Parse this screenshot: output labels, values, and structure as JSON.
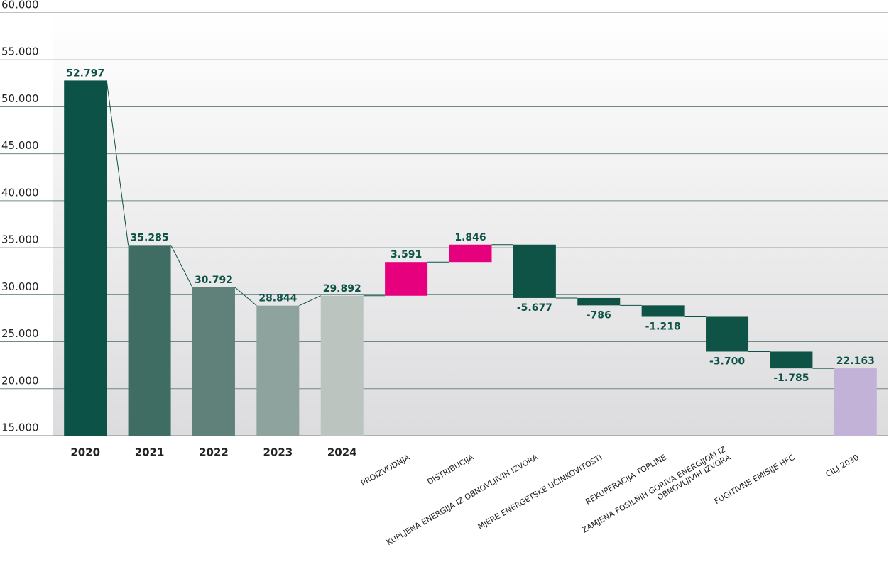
{
  "chart_data": {
    "type": "waterfall",
    "categories": [
      "2020",
      "2021",
      "2022",
      "2023",
      "2024",
      "PROIZVODNJA",
      "DISTRIBUCIJA",
      "KUPLJENA ENERGIJA IZ OBNOVLJIVIH IZVORA",
      "MJERE ENERGETSKE UČINKOVITOSTI",
      "REKUPERACIJA TOPLINE",
      "ZAMJENA FOSILNIH GORIVA ENERGIJOM IZ\nOBNOVLJIVIH IZVORA",
      "FUGITIVNE EMISIJE HFC",
      "CILJ 2030"
    ],
    "values": [
      52797,
      35285,
      30792,
      28844,
      29892,
      3591,
      1846,
      -5677,
      -786,
      -1218,
      -3700,
      -1785,
      22163
    ],
    "value_labels": [
      "52.797",
      "35.285",
      "30.792",
      "28.844",
      "29.892",
      "3.591",
      "1.846",
      "-5.677",
      "-786",
      "-1.218",
      "-3.700",
      "-1.785",
      "22.163"
    ],
    "measure": [
      "absolute",
      "absolute",
      "absolute",
      "absolute",
      "absolute",
      "relative",
      "relative",
      "relative",
      "relative",
      "relative",
      "relative",
      "relative",
      "absolute"
    ],
    "colors": [
      "#0d5247",
      "#3f6c63",
      "#5f8179",
      "#8fa39e",
      "#bcc4c0",
      "#e6007e",
      "#e6007e",
      "#0f5246",
      "#0f5246",
      "#0f5246",
      "#0f5246",
      "#0f5246",
      "#c3b2d8"
    ],
    "ylim": [
      15000,
      60000
    ],
    "yticks": [
      {
        "value": 15000,
        "label": "15.000"
      },
      {
        "value": 20000,
        "label": "20.000"
      },
      {
        "value": 25000,
        "label": "25.000"
      },
      {
        "value": 30000,
        "label": "30.000"
      },
      {
        "value": 35000,
        "label": "35.000"
      },
      {
        "value": 40000,
        "label": "40.000"
      },
      {
        "value": 45000,
        "label": "45.000"
      },
      {
        "value": 50000,
        "label": "50.000"
      },
      {
        "value": 55000,
        "label": "55.000"
      },
      {
        "value": 60000,
        "label": "60.000"
      }
    ],
    "grid": true
  }
}
